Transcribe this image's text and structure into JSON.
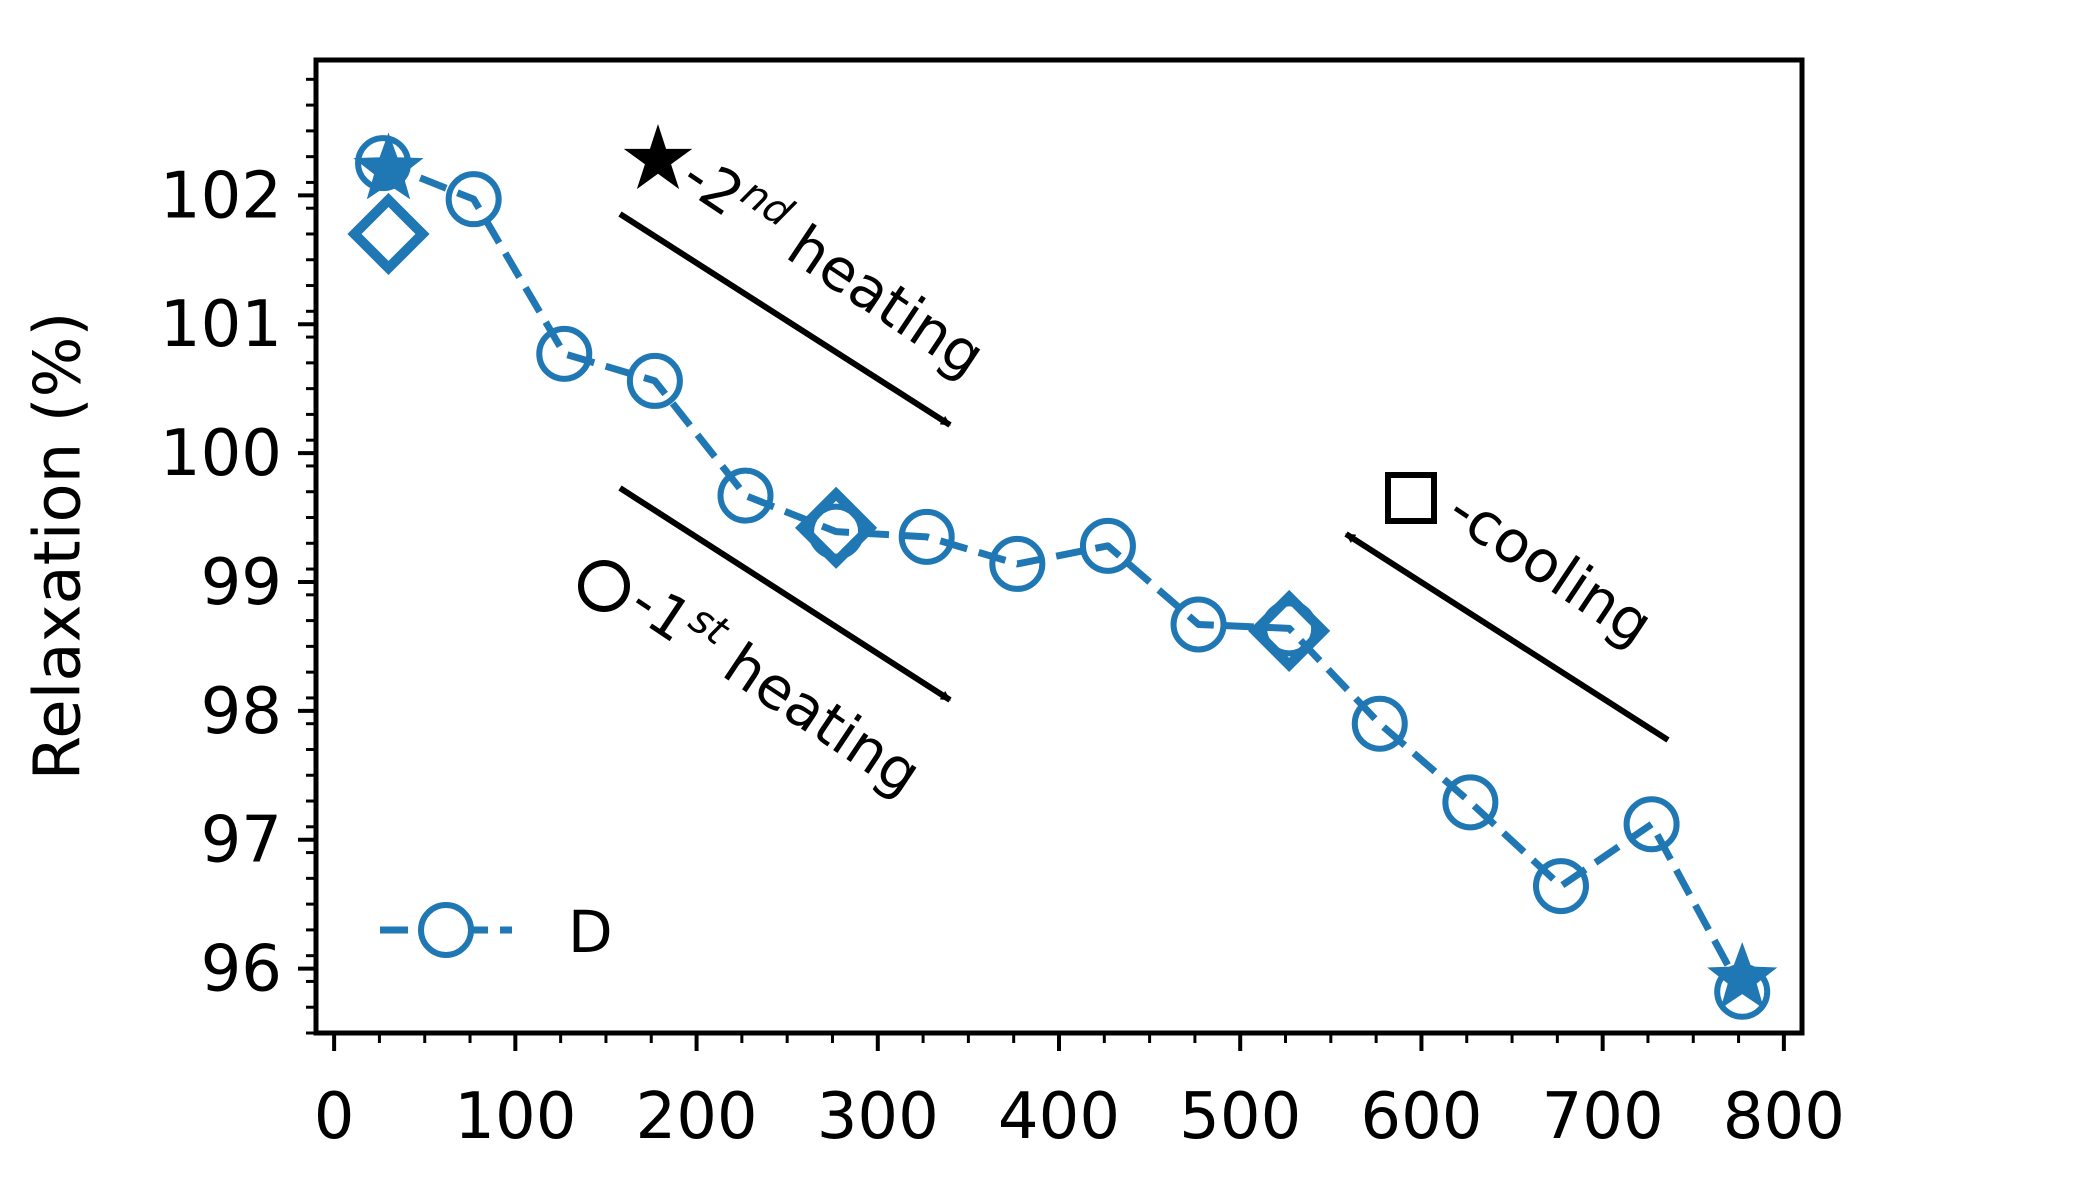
{
  "chart_data": {
    "type": "line",
    "title": "",
    "xlabel": "",
    "ylabel": "Relaxation (%)",
    "xlim": [
      -10,
      810
    ],
    "ylim": [
      95.5,
      103.05
    ],
    "xticks": [
      0,
      100,
      200,
      300,
      400,
      500,
      600,
      700,
      800
    ],
    "yticks": [
      96,
      97,
      98,
      99,
      100,
      101,
      102
    ],
    "series": [
      {
        "name": "D",
        "color": "#1f77b4",
        "line_style": "dashed",
        "marker": "open-circle",
        "x": [
          27,
          77,
          127,
          177,
          227,
          277,
          327,
          377,
          427,
          477,
          527,
          577,
          627,
          677,
          727,
          777
        ],
        "y": [
          102.25,
          101.97,
          100.77,
          100.56,
          99.67,
          99.39,
          99.35,
          99.14,
          99.28,
          98.67,
          98.64,
          97.9,
          97.29,
          96.64,
          97.12,
          95.82
        ]
      }
    ],
    "stage_markers": {
      "diamonds": {
        "x": [
          30,
          277,
          527
        ],
        "y": [
          101.7,
          99.42,
          98.62
        ]
      },
      "stars": {
        "x": [
          30,
          777
        ],
        "y": [
          102.2,
          95.92
        ]
      }
    },
    "annotations": {
      "second_heating": {
        "prefix": "-2",
        "sup": "nd",
        "text": " heating"
      },
      "first_heating": {
        "prefix": "-1",
        "sup": "st",
        "text": " heating"
      },
      "cooling": {
        "text": "-cooling"
      }
    },
    "legend": {
      "label": "D",
      "position": "lower-left"
    }
  }
}
